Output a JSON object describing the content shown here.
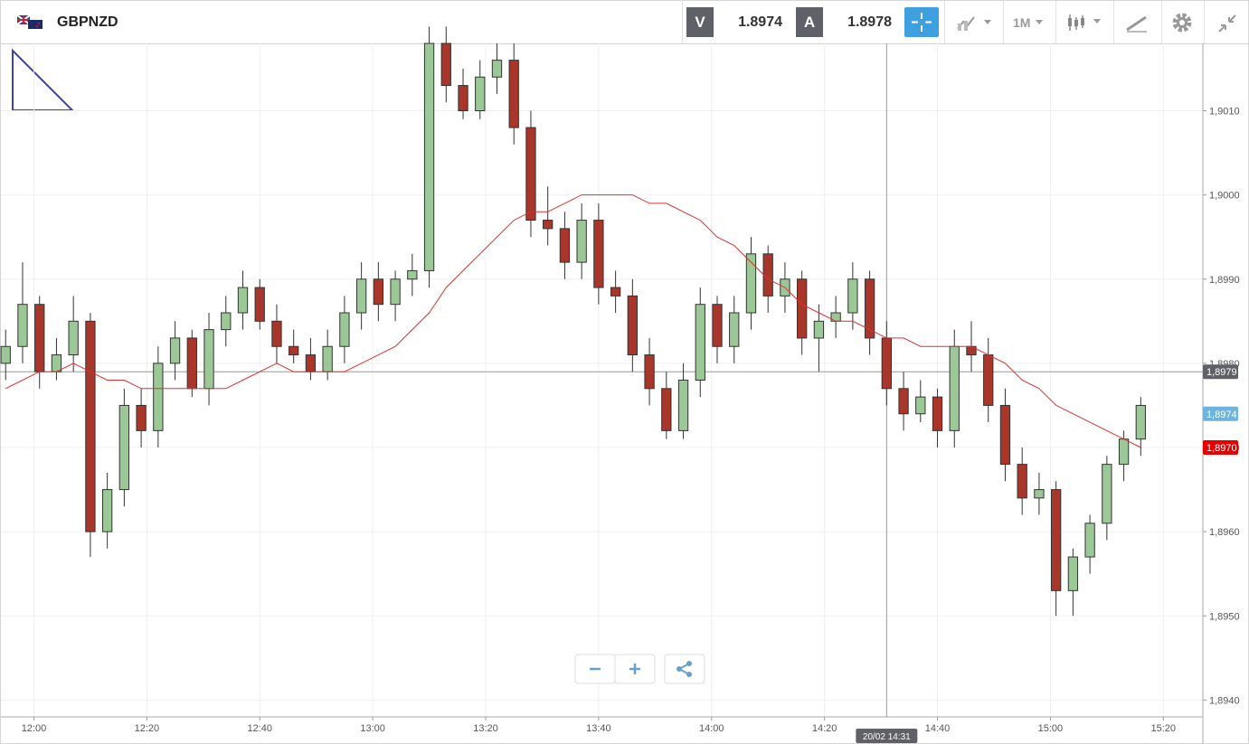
{
  "header": {
    "symbol": "GBPNZD",
    "bid_label": "V",
    "bid": "1.8974",
    "ask_label": "A",
    "ask": "1.8978",
    "timeframe": "1M"
  },
  "chart_data": {
    "type": "candlestick",
    "x": [
      "11:55",
      "11:58",
      "12:01",
      "12:04",
      "12:07",
      "12:10",
      "12:13",
      "12:16",
      "12:19",
      "12:22",
      "12:25",
      "12:28",
      "12:31",
      "12:34",
      "12:37",
      "12:40",
      "12:43",
      "12:46",
      "12:49",
      "12:52",
      "12:55",
      "12:58",
      "13:01",
      "13:04",
      "13:07",
      "13:10",
      "13:13",
      "13:16",
      "13:19",
      "13:22",
      "13:25",
      "13:28",
      "13:31",
      "13:34",
      "13:37",
      "13:40",
      "13:43",
      "13:46",
      "13:49",
      "13:52",
      "13:55",
      "13:58",
      "14:01",
      "14:04",
      "14:07",
      "14:10",
      "14:13",
      "14:16",
      "14:19",
      "14:22",
      "14:25",
      "14:28",
      "14:31",
      "14:34",
      "14:37",
      "14:40",
      "14:43",
      "14:46",
      "14:49",
      "14:52",
      "14:55",
      "14:58",
      "15:01",
      "15:04",
      "15:07",
      "15:10",
      "15:13",
      "15:16"
    ],
    "open": [
      1.898,
      1.8982,
      1.8987,
      1.8979,
      1.8981,
      1.8985,
      1.896,
      1.8965,
      1.8975,
      1.8972,
      1.898,
      1.8983,
      1.8977,
      1.8984,
      1.8986,
      1.8989,
      1.8985,
      1.8982,
      1.8981,
      1.8979,
      1.8982,
      1.8986,
      1.899,
      1.8987,
      1.899,
      1.8991,
      1.9018,
      1.9013,
      1.901,
      1.9014,
      1.9016,
      1.9008,
      1.8997,
      1.8996,
      1.8992,
      1.8997,
      1.8989,
      1.8988,
      1.8981,
      1.8977,
      1.8972,
      1.8978,
      1.8987,
      1.8982,
      1.8986,
      1.8993,
      1.8988,
      1.899,
      1.8983,
      1.8985,
      1.8986,
      1.899,
      1.8983,
      1.8977,
      1.8974,
      1.8976,
      1.8972,
      1.8982,
      1.8981,
      1.8975,
      1.8968,
      1.8964,
      1.8965,
      1.8953,
      1.8957,
      1.8961,
      1.8968,
      1.8971
    ],
    "high": [
      1.8984,
      1.8992,
      1.8988,
      1.8983,
      1.8988,
      1.8986,
      1.8967,
      1.8977,
      1.8977,
      1.8982,
      1.8985,
      1.8984,
      1.8986,
      1.8988,
      1.8991,
      1.899,
      1.8987,
      1.8984,
      1.8983,
      1.8984,
      1.8988,
      1.8992,
      1.8992,
      1.8991,
      1.8993,
      1.902,
      1.902,
      1.9015,
      1.9016,
      1.9018,
      1.9018,
      1.901,
      1.9001,
      1.8998,
      1.8999,
      1.8999,
      1.8991,
      1.899,
      1.8983,
      1.8979,
      1.898,
      1.8989,
      1.8988,
      1.8988,
      1.8995,
      1.8994,
      1.8992,
      1.8991,
      1.8987,
      1.8988,
      1.8992,
      1.8991,
      1.8985,
      1.8979,
      1.8978,
      1.8977,
      1.8984,
      1.8985,
      1.8983,
      1.8977,
      1.897,
      1.8967,
      1.8966,
      1.8958,
      1.8962,
      1.8969,
      1.8972,
      1.8976
    ],
    "low": [
      1.8978,
      1.898,
      1.8977,
      1.8978,
      1.8979,
      1.8957,
      1.8958,
      1.8963,
      1.897,
      1.897,
      1.8978,
      1.8976,
      1.8975,
      1.8982,
      1.8984,
      1.8984,
      1.898,
      1.898,
      1.8978,
      1.8978,
      1.898,
      1.8984,
      1.8985,
      1.8985,
      1.8988,
      1.8989,
      1.9011,
      1.9009,
      1.9009,
      1.9012,
      1.9006,
      1.8995,
      1.8994,
      1.899,
      1.899,
      1.8987,
      1.8986,
      1.8979,
      1.8975,
      1.8971,
      1.8971,
      1.8976,
      1.898,
      1.898,
      1.8984,
      1.8986,
      1.8986,
      1.8981,
      1.8979,
      1.8983,
      1.8984,
      1.8981,
      1.8975,
      1.8972,
      1.8973,
      1.897,
      1.897,
      1.8979,
      1.8973,
      1.8966,
      1.8962,
      1.8962,
      1.895,
      1.895,
      1.8955,
      1.8959,
      1.8966,
      1.8969
    ],
    "close": [
      1.8982,
      1.8987,
      1.8979,
      1.8981,
      1.8985,
      1.896,
      1.8965,
      1.8975,
      1.8972,
      1.898,
      1.8983,
      1.8977,
      1.8984,
      1.8986,
      1.8989,
      1.8985,
      1.8982,
      1.8981,
      1.8979,
      1.8982,
      1.8986,
      1.899,
      1.8987,
      1.899,
      1.8991,
      1.9018,
      1.9013,
      1.901,
      1.9014,
      1.9016,
      1.9008,
      1.8997,
      1.8996,
      1.8992,
      1.8997,
      1.8989,
      1.8988,
      1.8981,
      1.8977,
      1.8972,
      1.8978,
      1.8987,
      1.8982,
      1.8986,
      1.8993,
      1.8988,
      1.899,
      1.8983,
      1.8985,
      1.8986,
      1.899,
      1.8983,
      1.8977,
      1.8974,
      1.8976,
      1.8972,
      1.8982,
      1.8981,
      1.8975,
      1.8968,
      1.8964,
      1.8965,
      1.8953,
      1.8957,
      1.8961,
      1.8968,
      1.8971,
      1.8975
    ],
    "up_color": "#9cc796",
    "down_color": "#a8362a",
    "ma": {
      "color": "#e03030",
      "values": [
        1.8977,
        1.8978,
        1.8979,
        1.8979,
        1.898,
        1.8979,
        1.8978,
        1.8978,
        1.8977,
        1.8977,
        1.8977,
        1.8977,
        1.8977,
        1.8977,
        1.8978,
        1.8979,
        1.898,
        1.8979,
        1.8979,
        1.8979,
        1.8979,
        1.898,
        1.8981,
        1.8982,
        1.8984,
        1.8986,
        1.8989,
        1.8991,
        1.8993,
        1.8995,
        1.8997,
        1.8998,
        1.8998,
        1.8999,
        1.9,
        1.9,
        1.9,
        1.9,
        1.8999,
        1.8999,
        1.8998,
        1.8997,
        1.8995,
        1.8994,
        1.8992,
        1.899,
        1.8989,
        1.8987,
        1.8986,
        1.8985,
        1.8985,
        1.8984,
        1.8983,
        1.8983,
        1.8982,
        1.8982,
        1.8982,
        1.8982,
        1.8981,
        1.898,
        1.8978,
        1.8977,
        1.8975,
        1.8974,
        1.8973,
        1.8972,
        1.8971,
        1.897
      ]
    },
    "xlim": [
      "11:54",
      "15:27"
    ],
    "xticks": [
      "12:00",
      "12:20",
      "12:40",
      "13:00",
      "13:20",
      "13:40",
      "14:00",
      "14:20",
      "14:40",
      "15:00",
      "15:20"
    ],
    "ylim": [
      1.8938,
      1.9018
    ],
    "yticks": [
      {
        "value": 1.894,
        "label": "1,8940"
      },
      {
        "value": 1.895,
        "label": "1,8950"
      },
      {
        "value": 1.896,
        "label": "1,8960"
      },
      {
        "value": 1.897,
        "label": "1,8970"
      },
      {
        "value": 1.898,
        "label": "1,8980"
      },
      {
        "value": 1.899,
        "label": "1,8990"
      },
      {
        "value": 1.9,
        "label": "1,9000"
      },
      {
        "value": 1.901,
        "label": "1,9010"
      }
    ],
    "grid": true,
    "price_lines": [
      {
        "value": 1.8979,
        "label": "1,8979",
        "color": "#5f6166",
        "show_line": true
      },
      {
        "value": 1.8974,
        "label": "1,8974",
        "color": "#6db3dc",
        "show_line": false
      },
      {
        "value": 1.897,
        "label": "1,8970",
        "color": "#e60000",
        "show_line": false
      }
    ],
    "crosshair": {
      "x": "14:31",
      "label": "20/02 14:31"
    }
  }
}
